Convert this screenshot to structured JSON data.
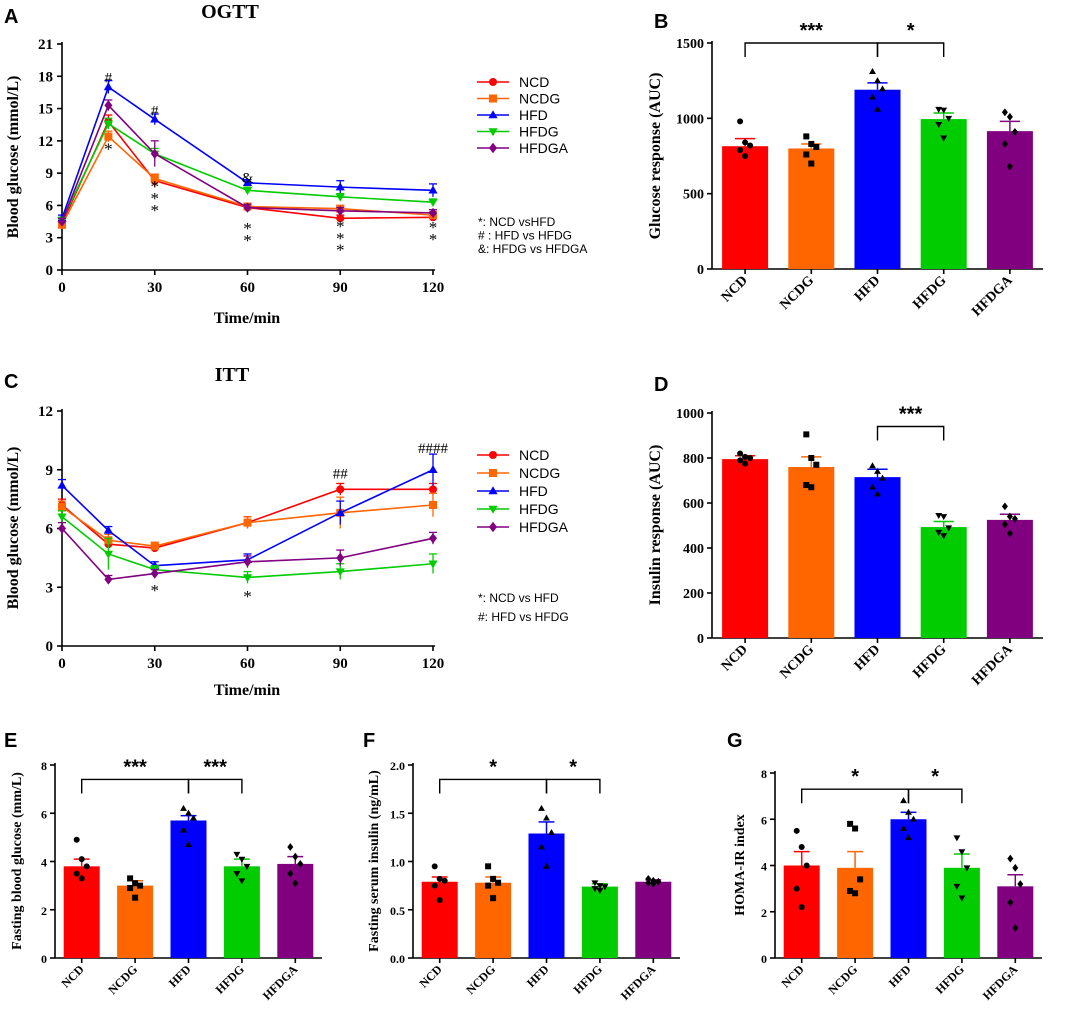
{
  "figure": {
    "colors": {
      "NCD": "#ff0000",
      "NCDG": "#ff6600",
      "HFD": "#0000ff",
      "HFDG": "#00cc00",
      "HFDGA": "#800080"
    }
  },
  "chart_data": [
    {
      "panel": "A",
      "type": "line",
      "title": "OGTT",
      "xlabel": "Time/min",
      "ylabel": "Blood glucose (mmol/L)",
      "xlim": [
        0,
        120
      ],
      "ylim": [
        0,
        21
      ],
      "xticks": [
        0,
        30,
        60,
        90,
        120
      ],
      "yticks": [
        0,
        3,
        6,
        9,
        12,
        15,
        18,
        21
      ],
      "x": [
        0,
        15,
        30,
        60,
        90,
        120
      ],
      "series": [
        {
          "name": "NCD",
          "marker": "circle",
          "values": [
            4.3,
            13.8,
            8.3,
            5.8,
            4.8,
            4.9
          ],
          "err": [
            0.3,
            0.6,
            0.6,
            0.3,
            0.3,
            0.3
          ]
        },
        {
          "name": "NCDG",
          "marker": "square",
          "values": [
            4.2,
            12.4,
            8.5,
            5.9,
            5.7,
            5.1
          ],
          "err": [
            0.3,
            0.5,
            0.4,
            0.2,
            0.3,
            0.3
          ]
        },
        {
          "name": "HFD",
          "marker": "triangle-up",
          "values": [
            4.8,
            17.0,
            14.0,
            8.1,
            7.7,
            7.4
          ],
          "err": [
            0.3,
            0.6,
            0.5,
            0.3,
            0.6,
            0.6
          ]
        },
        {
          "name": "HFDG",
          "marker": "triangle-down",
          "values": [
            4.6,
            13.6,
            10.8,
            7.4,
            6.8,
            6.3
          ],
          "err": [
            0.3,
            0.5,
            0.5,
            0.3,
            0.3,
            0.3
          ]
        },
        {
          "name": "HFDGA",
          "marker": "diamond",
          "values": [
            4.5,
            15.3,
            10.8,
            5.8,
            5.5,
            5.3
          ],
          "err": [
            0.3,
            0.5,
            1.2,
            0.3,
            0.3,
            0.3
          ]
        }
      ],
      "annotations": [
        {
          "x": 15,
          "y": 17.9,
          "text": "#"
        },
        {
          "x": 30,
          "y": 14.8,
          "text": "#"
        },
        {
          "x": 60,
          "y": 8.6,
          "text": "&"
        },
        {
          "x": 15,
          "y": 11.2,
          "text": "*"
        },
        {
          "x": 30,
          "y": 7.7,
          "text": "*"
        },
        {
          "x": 30,
          "y": 6.6,
          "text": "*"
        },
        {
          "x": 30,
          "y": 5.5,
          "text": "*"
        },
        {
          "x": 60,
          "y": 3.8,
          "text": "*"
        },
        {
          "x": 60,
          "y": 2.7,
          "text": "*"
        },
        {
          "x": 90,
          "y": 4.0,
          "text": "*"
        },
        {
          "x": 90,
          "y": 2.9,
          "text": "*"
        },
        {
          "x": 90,
          "y": 1.8,
          "text": "*"
        },
        {
          "x": 120,
          "y": 3.9,
          "text": "*"
        },
        {
          "x": 120,
          "y": 2.8,
          "text": "*"
        }
      ],
      "notes": [
        "*: NCD vsHFD",
        "# : HFD vs HFDG",
        "&: HFDG vs HFDGA"
      ]
    },
    {
      "panel": "B",
      "type": "bar",
      "title": "",
      "categories": [
        "NCD",
        "NCDG",
        "HFD",
        "HFDG",
        "HFDGA"
      ],
      "values": [
        815,
        800,
        1190,
        995,
        915
      ],
      "err": [
        50,
        30,
        45,
        40,
        65
      ],
      "points": [
        [
          980,
          840,
          820,
          790,
          750
        ],
        [
          880,
          830,
          810,
          760,
          700
        ],
        [
          1310,
          1250,
          1195,
          1140,
          1060
        ],
        [
          1060,
          1055,
          1000,
          960,
          870
        ],
        [
          1040,
          1010,
          910,
          830,
          680
        ]
      ],
      "ylabel": "Glucose response (AUC)",
      "ylim": [
        0,
        1500
      ],
      "yticks": [
        0,
        500,
        1000,
        1500
      ],
      "brackets": [
        {
          "from": 0,
          "to": 2,
          "y": 1500,
          "text": "***"
        },
        {
          "from": 2,
          "to": 3,
          "y": 1500,
          "text": "*"
        }
      ]
    },
    {
      "panel": "C",
      "type": "line",
      "title": "ITT",
      "xlabel": "Time/min",
      "ylabel": "Blood glucose (mmol/L)",
      "xlim": [
        0,
        120
      ],
      "ylim": [
        0,
        12
      ],
      "xticks": [
        0,
        30,
        60,
        90,
        120
      ],
      "yticks": [
        0,
        3,
        6,
        9,
        12
      ],
      "x": [
        0,
        15,
        30,
        60,
        90,
        120
      ],
      "series": [
        {
          "name": "NCD",
          "marker": "circle",
          "values": [
            7.2,
            5.2,
            5.0,
            6.3,
            8.0,
            8.0
          ],
          "err": [
            0.3,
            0.2,
            0.2,
            0.3,
            0.3,
            0.3
          ]
        },
        {
          "name": "NCDG",
          "marker": "square",
          "values": [
            7.1,
            5.4,
            5.1,
            6.3,
            6.8,
            7.2
          ],
          "err": [
            0.3,
            0.3,
            0.2,
            0.3,
            0.8,
            0.6
          ]
        },
        {
          "name": "HFD",
          "marker": "triangle-up",
          "values": [
            8.2,
            5.9,
            4.1,
            4.4,
            6.8,
            9.0
          ],
          "err": [
            0.3,
            0.2,
            0.2,
            0.3,
            0.6,
            0.8
          ]
        },
        {
          "name": "HFDG",
          "marker": "triangle-down",
          "values": [
            6.6,
            4.7,
            3.9,
            3.5,
            3.8,
            4.2
          ],
          "err": [
            0.3,
            0.8,
            0.2,
            0.3,
            0.4,
            0.5
          ]
        },
        {
          "name": "HFDGA",
          "marker": "diamond",
          "values": [
            6.0,
            3.4,
            3.7,
            4.3,
            4.5,
            5.5
          ],
          "err": [
            0.3,
            0.2,
            0.2,
            0.3,
            0.4,
            0.3
          ]
        }
      ],
      "annotations": [
        {
          "x": 90,
          "y": 8.8,
          "text": "##"
        },
        {
          "x": 120,
          "y": 10.1,
          "text": "####"
        },
        {
          "x": 30,
          "y": 2.8,
          "text": "*"
        },
        {
          "x": 60,
          "y": 2.5,
          "text": "*"
        }
      ],
      "notes": [
        "*: NCD vs HFD",
        "#: HFD vs HFDG"
      ]
    },
    {
      "panel": "D",
      "type": "bar",
      "title": "",
      "categories": [
        "NCD",
        "NCDG",
        "HFD",
        "HFDG",
        "HFDGA"
      ],
      "values": [
        795,
        760,
        715,
        493,
        525
      ],
      "err": [
        15,
        45,
        35,
        25,
        25
      ],
      "points": [
        [
          820,
          805,
          800,
          790,
          775
        ],
        [
          905,
          800,
          770,
          680,
          670
        ],
        [
          765,
          740,
          710,
          670,
          640
        ],
        [
          545,
          540,
          490,
          470,
          455
        ],
        [
          585,
          540,
          530,
          505,
          465
        ]
      ],
      "ylabel": "Insulin response (AUC)",
      "ylim": [
        0,
        1000
      ],
      "yticks": [
        0,
        200,
        400,
        600,
        800,
        1000
      ],
      "brackets": [
        {
          "from": 2,
          "to": 3,
          "y": 940,
          "text": "***"
        }
      ]
    },
    {
      "panel": "E",
      "type": "bar",
      "title": "",
      "categories": [
        "NCD",
        "NCDG",
        "HFD",
        "HFDG",
        "HFDGA"
      ],
      "values": [
        3.8,
        3.0,
        5.7,
        3.8,
        3.9
      ],
      "err": [
        0.3,
        0.2,
        0.2,
        0.3,
        0.3
      ],
      "points": [
        [
          4.9,
          4.1,
          3.8,
          3.5,
          3.3
        ],
        [
          3.3,
          3.1,
          3.0,
          2.9,
          2.5
        ],
        [
          6.2,
          6.0,
          5.8,
          5.3,
          4.7
        ],
        [
          4.3,
          4.1,
          3.8,
          3.5,
          3.2
        ],
        [
          4.6,
          4.2,
          3.9,
          3.5,
          3.1
        ]
      ],
      "ylabel": "Fasting blood glucose (mm/L)",
      "ylim": [
        0,
        8
      ],
      "yticks": [
        0,
        2,
        4,
        6,
        8
      ],
      "brackets": [
        {
          "from": 0,
          "to": 2,
          "y": 7.4,
          "text": "***"
        },
        {
          "from": 2,
          "to": 3,
          "y": 7.4,
          "text": "***"
        }
      ]
    },
    {
      "panel": "F",
      "type": "bar",
      "title": "",
      "categories": [
        "NCD",
        "NCDG",
        "HFD",
        "HFDG",
        "HFDGA"
      ],
      "values": [
        0.79,
        0.78,
        1.29,
        0.74,
        0.79
      ],
      "err": [
        0.05,
        0.06,
        0.12,
        0.03,
        0.02
      ],
      "points": [
        [
          0.95,
          0.82,
          0.8,
          0.75,
          0.6
        ],
        [
          0.95,
          0.82,
          0.78,
          0.75,
          0.62
        ],
        [
          1.55,
          1.45,
          1.3,
          1.15,
          0.95
        ],
        [
          0.78,
          0.75,
          0.74,
          0.72,
          0.7
        ],
        [
          0.82,
          0.8,
          0.79,
          0.78,
          0.77
        ]
      ],
      "ylabel": "Fasting serum insulin (ng/mL)",
      "ylim": [
        0,
        2.0
      ],
      "yticks": [
        0.0,
        0.5,
        1.0,
        1.5,
        2.0
      ],
      "yticklabels": [
        "0.0",
        "0.5",
        "1.0",
        "1.5",
        "2.0"
      ],
      "brackets": [
        {
          "from": 0,
          "to": 2,
          "y": 1.85,
          "text": "*"
        },
        {
          "from": 2,
          "to": 3,
          "y": 1.85,
          "text": "*"
        }
      ]
    },
    {
      "panel": "G",
      "type": "bar",
      "title": "",
      "categories": [
        "NCD",
        "NCDG",
        "HFD",
        "HFDG",
        "HFDGA"
      ],
      "values": [
        4.0,
        3.9,
        6.0,
        3.9,
        3.1
      ],
      "err": [
        0.6,
        0.7,
        0.3,
        0.6,
        0.5
      ],
      "points": [
        [
          5.5,
          4.8,
          4.0,
          3.0,
          2.2
        ],
        [
          5.8,
          5.6,
          3.4,
          2.9,
          2.8
        ],
        [
          6.8,
          6.3,
          6.0,
          5.6,
          5.2
        ],
        [
          5.2,
          4.6,
          3.9,
          3.1,
          2.6
        ],
        [
          4.3,
          3.9,
          3.2,
          2.4,
          1.3
        ]
      ],
      "ylabel": "HOMA-IR index",
      "ylim": [
        0,
        8
      ],
      "yticks": [
        0,
        2,
        4,
        6,
        8
      ],
      "brackets": [
        {
          "from": 0,
          "to": 2,
          "y": 7.3,
          "text": "*"
        },
        {
          "from": 2,
          "to": 3,
          "y": 7.3,
          "text": "*"
        }
      ]
    }
  ],
  "panel_labels": [
    "A",
    "B",
    "C",
    "D",
    "E",
    "F",
    "G"
  ]
}
